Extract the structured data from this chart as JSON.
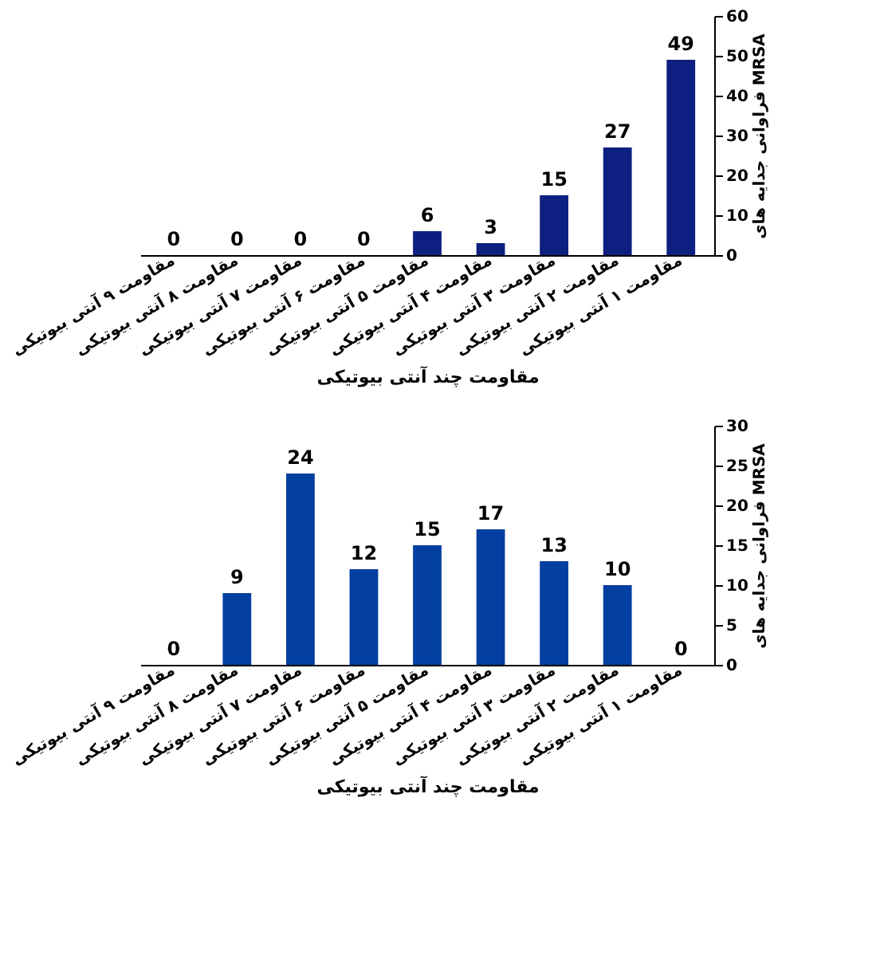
{
  "chart_data": [
    {
      "type": "bar",
      "xlabel": "مقاومت چند آنتی بیوتیکی",
      "ylabel": "فراوانی جدایه های MRSA",
      "categories": [
        "مقاومت ۹ آنتی بیوتیکی",
        "مقاومت ۸ آنتی بیوتیکی",
        "مقاومت ۷ آنتی بیوتیکی",
        "مقاومت ۶ آنتی بیوتیکی",
        "مقاومت ۵ آنتی بیوتیکی",
        "مقاومت ۴ آنتی بیوتیکی",
        "مقاومت ۳ آنتی بیوتیکی",
        "مقاومت ۲ آنتی بیوتیکی",
        "مقاومت ۱ آنتی بیوتیکی"
      ],
      "values": [
        0,
        0,
        0,
        0,
        6,
        3,
        15,
        27,
        49
      ],
      "color": "#0d1f80",
      "ylim": [
        0,
        60
      ],
      "yticks": [
        0,
        10,
        20,
        30,
        40,
        50,
        60
      ],
      "data_labels": true,
      "grid": false
    },
    {
      "type": "bar",
      "xlabel": "مقاومت چند آنتی بیوتیکی",
      "ylabel": "فراوانی جدایه های MRSA",
      "categories": [
        "مقاومت ۹ آنتی بیوتیکی",
        "مقاومت ۸ آنتی بیوتیکی",
        "مقاومت ۷ آنتی بیوتیکی",
        "مقاومت ۶ آنتی بیوتیکی",
        "مقاومت ۵ آنتی بیوتیکی",
        "مقاومت ۴ آنتی بیوتیکی",
        "مقاومت ۳ آنتی بیوتیکی",
        "مقاومت ۲ آنتی بیوتیکی",
        "مقاومت ۱ آنتی بیوتیکی"
      ],
      "values": [
        0,
        9,
        24,
        12,
        15,
        17,
        13,
        10,
        0
      ],
      "color": "#023fa0",
      "ylim": [
        0,
        30
      ],
      "yticks": [
        0,
        5,
        10,
        15,
        20,
        25,
        30
      ],
      "data_labels": true,
      "grid": false
    }
  ]
}
